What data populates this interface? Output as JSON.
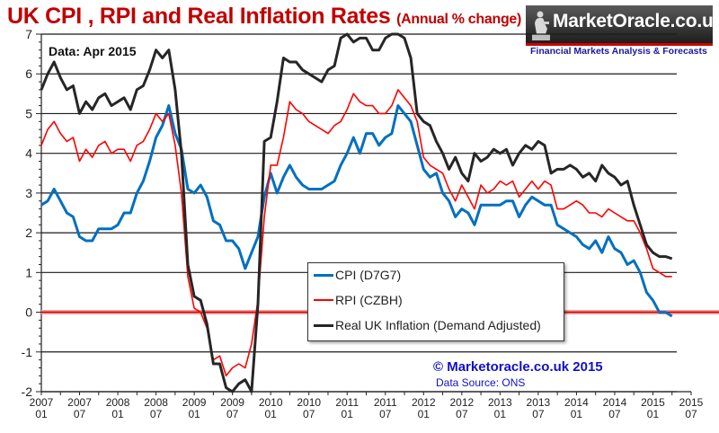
{
  "header": {
    "title": "UK CPI , RPI and Real Inflation Rates",
    "subtitle": "(Annual % change)"
  },
  "branding": {
    "logo_text": "MarketOracle.co.uk",
    "tagline": "Financial Markets Analysis & Forecasts",
    "copyright": "© Marketoracle.co.uk 2015",
    "source": "Data Source: ONS"
  },
  "colors": {
    "title": "#c00000",
    "cpi": "#0070c0",
    "rpi": "#ff0000",
    "real": "#262626",
    "zero_line": "#c00000",
    "footer_text": "#1010c8"
  },
  "chart_data": {
    "type": "line",
    "title": "UK CPI , RPI and Real Inflation Rates (Annual % change)",
    "annotation": "Data:  Apr 2015",
    "xlabel": "",
    "ylabel": "",
    "ylim": [
      -2,
      7
    ],
    "yticks": [
      "7",
      "6",
      "5",
      "4",
      "3",
      "2",
      "1",
      "0",
      "-1",
      "-2"
    ],
    "grid": true,
    "legend_position": "bottom-center",
    "x_start": "2007-01",
    "x_end_axis": "2015-07",
    "xtick_labels": [
      [
        "2007",
        "01"
      ],
      [
        "2007",
        "07"
      ],
      [
        "2008",
        "01"
      ],
      [
        "2008",
        "07"
      ],
      [
        "2009",
        "01"
      ],
      [
        "2009",
        "07"
      ],
      [
        "2010",
        "01"
      ],
      [
        "2010",
        "07"
      ],
      [
        "2011",
        "01"
      ],
      [
        "2011",
        "07"
      ],
      [
        "2012",
        "01"
      ],
      [
        "2012",
        "07"
      ],
      [
        "2013",
        "01"
      ],
      [
        "2013",
        "07"
      ],
      [
        "2014",
        "01"
      ],
      [
        "2014",
        "07"
      ],
      [
        "2015",
        "01"
      ],
      [
        "2015",
        "07"
      ]
    ],
    "series": [
      {
        "name": "CPI (D7G7)",
        "color": "#0070c0",
        "values": [
          2.7,
          2.8,
          3.1,
          2.8,
          2.5,
          2.4,
          1.9,
          1.8,
          1.8,
          2.1,
          2.1,
          2.1,
          2.2,
          2.5,
          2.5,
          3.0,
          3.3,
          3.8,
          4.4,
          4.7,
          5.2,
          4.5,
          4.1,
          3.1,
          3.0,
          3.2,
          2.9,
          2.3,
          2.2,
          1.8,
          1.8,
          1.6,
          1.1,
          1.5,
          1.9,
          2.9,
          3.5,
          3.0,
          3.4,
          3.7,
          3.4,
          3.2,
          3.1,
          3.1,
          3.1,
          3.2,
          3.3,
          3.7,
          4.0,
          4.4,
          4.0,
          4.5,
          4.5,
          4.2,
          4.4,
          4.5,
          5.2,
          5.0,
          4.8,
          4.2,
          3.6,
          3.4,
          3.5,
          3.0,
          2.8,
          2.4,
          2.6,
          2.5,
          2.2,
          2.7,
          2.7,
          2.7,
          2.7,
          2.8,
          2.8,
          2.4,
          2.7,
          2.9,
          2.8,
          2.7,
          2.7,
          2.2,
          2.1,
          2.0,
          1.9,
          1.7,
          1.6,
          1.8,
          1.5,
          1.9,
          1.6,
          1.5,
          1.2,
          1.3,
          1.0,
          0.5,
          0.3,
          0.0,
          0.0,
          -0.1
        ]
      },
      {
        "name": "RPI (CZBH)",
        "color": "#ff0000",
        "values": [
          4.2,
          4.6,
          4.8,
          4.5,
          4.3,
          4.4,
          3.8,
          4.1,
          3.9,
          4.2,
          4.3,
          4.0,
          4.1,
          4.1,
          3.8,
          4.2,
          4.3,
          4.6,
          5.0,
          4.8,
          5.0,
          4.2,
          3.0,
          0.9,
          0.1,
          0.0,
          -0.4,
          -1.2,
          -1.1,
          -1.6,
          -1.4,
          -1.3,
          -1.4,
          -0.8,
          0.3,
          2.4,
          3.7,
          3.7,
          4.4,
          5.3,
          5.1,
          5.0,
          4.8,
          4.7,
          4.6,
          4.5,
          4.7,
          4.8,
          5.1,
          5.5,
          5.3,
          5.2,
          5.2,
          5.0,
          5.0,
          5.2,
          5.6,
          5.4,
          5.2,
          4.8,
          3.9,
          3.7,
          3.6,
          3.5,
          3.1,
          2.8,
          3.2,
          2.9,
          2.6,
          3.2,
          3.0,
          3.1,
          3.3,
          3.2,
          3.3,
          2.9,
          3.1,
          3.3,
          3.1,
          3.3,
          3.2,
          2.6,
          2.6,
          2.7,
          2.8,
          2.7,
          2.5,
          2.5,
          2.4,
          2.6,
          2.5,
          2.4,
          2.3,
          2.3,
          2.0,
          1.6,
          1.1,
          1.0,
          0.9,
          0.9
        ]
      },
      {
        "name": "Real UK Inflation (Demand Adjusted)",
        "color": "#262626",
        "values": [
          5.6,
          6.0,
          6.3,
          5.9,
          5.6,
          5.7,
          5.0,
          5.3,
          5.1,
          5.4,
          5.5,
          5.2,
          5.3,
          5.4,
          5.1,
          5.6,
          5.7,
          6.1,
          6.6,
          6.4,
          6.6,
          5.6,
          4.0,
          1.2,
          0.4,
          0.3,
          -0.3,
          -1.3,
          -1.3,
          -1.9,
          -2.1,
          -1.8,
          -1.7,
          -2.1,
          0.2,
          4.3,
          4.4,
          5.3,
          6.4,
          6.3,
          6.3,
          6.1,
          6.0,
          5.9,
          5.8,
          6.1,
          6.2,
          6.9,
          7.2,
          6.8,
          6.9,
          6.9,
          6.6,
          6.6,
          6.9,
          7.3,
          7.2,
          6.9,
          6.4,
          5.0,
          4.8,
          4.7,
          4.3,
          4.0,
          3.6,
          3.9,
          3.5,
          3.3,
          4.0,
          3.8,
          3.9,
          4.1,
          4.0,
          4.1,
          3.7,
          4.0,
          4.2,
          4.1,
          4.3,
          4.2,
          3.5,
          3.6,
          3.6,
          3.7,
          3.6,
          3.4,
          3.5,
          3.3,
          3.7,
          3.5,
          3.4,
          3.2,
          3.3,
          2.7,
          2.2,
          1.7,
          1.5,
          1.4,
          1.4,
          1.35
        ]
      }
    ],
    "zero_line": {
      "value": 0,
      "color": "#c00000"
    }
  }
}
